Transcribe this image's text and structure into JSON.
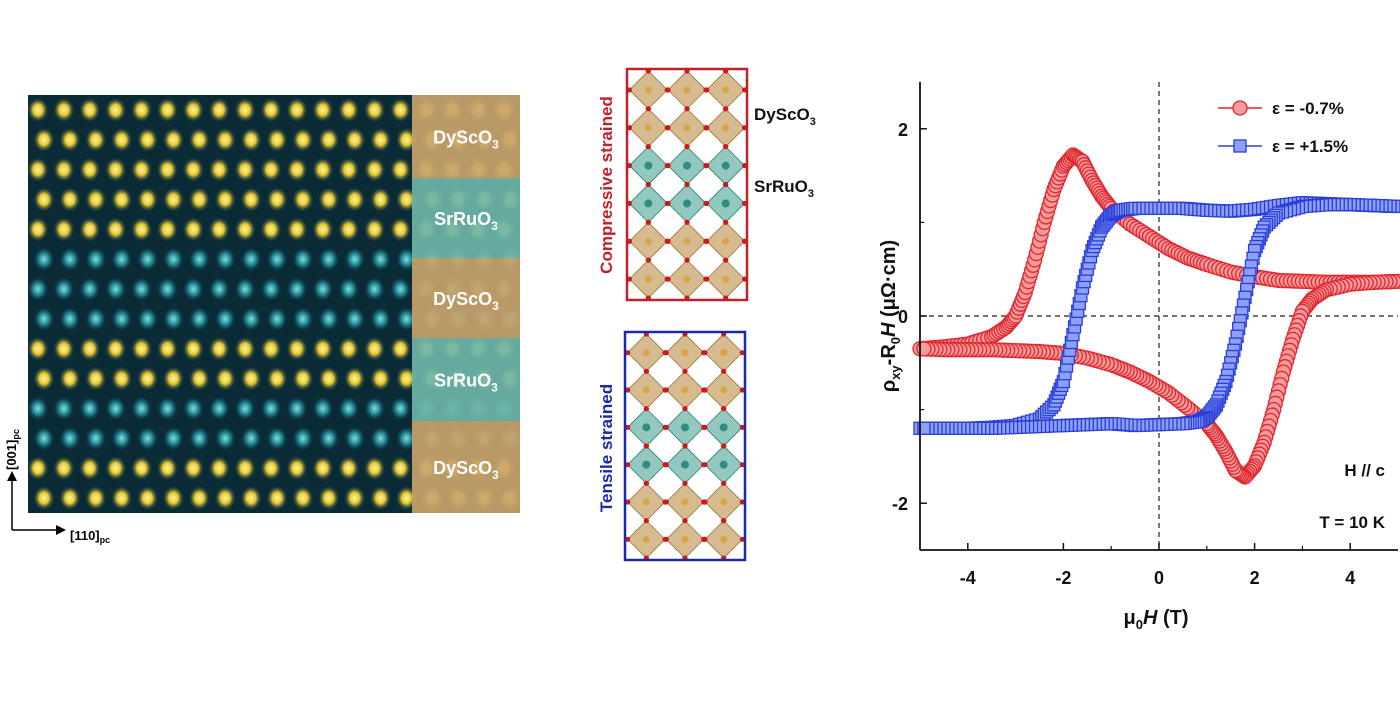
{
  "stem": {
    "layers": [
      {
        "base": "DyScO",
        "sub": "3",
        "kind": "dso"
      },
      {
        "base": "SrRuO",
        "sub": "3",
        "kind": "sro"
      },
      {
        "base": "DyScO",
        "sub": "3",
        "kind": "dso"
      },
      {
        "base": "SrRuO",
        "sub": "3",
        "kind": "sro"
      },
      {
        "base": "DyScO",
        "sub": "3",
        "kind": "dso"
      }
    ],
    "axis_vertical": {
      "base": "[001]",
      "sub": "pc"
    },
    "axis_horizontal": {
      "base": "[110]",
      "sub": "pc"
    }
  },
  "structures": {
    "compressive_label": "Compressive strained",
    "tensile_label": "Tensile strained",
    "dso_label": {
      "base": "DyScO",
      "sub": "3"
    },
    "sro_label": {
      "base": "SrRuO",
      "sub": "3"
    }
  },
  "colors": {
    "dso": "#c9a46b",
    "sro": "#6fb5a8",
    "compressive": "#c0202a",
    "tensile": "#1a2aa6",
    "series_red": "#e0262e",
    "series_blue": "#2a3ed8"
  },
  "chart_data": {
    "type": "scatter",
    "xlabel": "μ0H (T)",
    "ylabel": "ρxy-R0H (μΩ·cm)",
    "xlim": [
      -5,
      5
    ],
    "ylim": [
      -2.5,
      2.5
    ],
    "xticks": [
      -4,
      -2,
      0,
      2,
      4
    ],
    "yticks": [
      -2,
      0,
      2
    ],
    "annotations": [
      "H // c",
      "T = 10 K"
    ],
    "series": [
      {
        "name": "ε = -0.7%",
        "marker": "circle",
        "branches": [
          {
            "x": [
              -5,
              -4.5,
              -4,
              -3.5,
              -3.2,
              -3.0,
              -2.8,
              -2.6,
              -2.4,
              -2.2,
              -2.0,
              -1.8,
              -1.6,
              -1.4,
              -1.2,
              -1.0,
              -0.6,
              -0.2,
              0.2,
              0.6,
              1.0,
              1.5,
              2.0,
              2.5,
              3.0,
              3.5,
              4.0,
              4.5,
              5.0
            ],
            "y": [
              -0.35,
              -0.33,
              -0.3,
              -0.22,
              -0.12,
              0.0,
              0.25,
              0.6,
              1.0,
              1.35,
              1.6,
              1.72,
              1.65,
              1.45,
              1.28,
              1.15,
              0.98,
              0.85,
              0.72,
              0.62,
              0.55,
              0.47,
              0.42,
              0.38,
              0.37,
              0.36,
              0.36,
              0.36,
              0.37
            ]
          },
          {
            "x": [
              5.0,
              4.5,
              4.0,
              3.5,
              3.2,
              3.0,
              2.8,
              2.6,
              2.4,
              2.2,
              2.0,
              1.8,
              1.6,
              1.4,
              1.2,
              1.0,
              0.6,
              0.2,
              -0.2,
              -0.6,
              -1.0,
              -1.5,
              -2.0,
              -2.5,
              -3.0,
              -3.5,
              -4.0,
              -4.5,
              -5.0
            ],
            "y": [
              0.37,
              0.36,
              0.34,
              0.28,
              0.18,
              0.05,
              -0.25,
              -0.6,
              -1.0,
              -1.35,
              -1.6,
              -1.72,
              -1.65,
              -1.45,
              -1.28,
              -1.15,
              -0.98,
              -0.82,
              -0.7,
              -0.6,
              -0.52,
              -0.45,
              -0.4,
              -0.38,
              -0.37,
              -0.36,
              -0.36,
              -0.36,
              -0.35
            ]
          }
        ]
      },
      {
        "name": "ε = +1.5%",
        "marker": "square",
        "branches": [
          {
            "x": [
              -5,
              -4.5,
              -4,
              -3.5,
              -3.0,
              -2.5,
              -2.2,
              -2.0,
              -1.8,
              -1.6,
              -1.4,
              -1.2,
              -1.0,
              -0.8,
              -0.5,
              0,
              0.5,
              1.0,
              1.5,
              2.0,
              2.5,
              3.0,
              3.5,
              4.0,
              4.5,
              5.0
            ],
            "y": [
              -1.2,
              -1.2,
              -1.2,
              -1.19,
              -1.17,
              -1.1,
              -0.95,
              -0.7,
              -0.2,
              0.3,
              0.7,
              0.95,
              1.08,
              1.13,
              1.15,
              1.15,
              1.15,
              1.13,
              1.12,
              1.14,
              1.18,
              1.21,
              1.2,
              1.19,
              1.18,
              1.17
            ]
          },
          {
            "x": [
              5.0,
              4.5,
              4.0,
              3.5,
              3.0,
              2.5,
              2.2,
              2.0,
              1.8,
              1.6,
              1.4,
              1.2,
              1.0,
              0.8,
              0.5,
              0,
              -0.5,
              -1.0,
              -1.5,
              -2.0,
              -2.5,
              -3.0,
              -3.5,
              -4.0,
              -4.5,
              -5.0
            ],
            "y": [
              1.17,
              1.18,
              1.19,
              1.19,
              1.17,
              1.1,
              0.95,
              0.7,
              0.2,
              -0.3,
              -0.7,
              -0.95,
              -1.08,
              -1.13,
              -1.15,
              -1.16,
              -1.17,
              -1.15,
              -1.16,
              -1.17,
              -1.18,
              -1.19,
              -1.2,
              -1.2,
              -1.2,
              -1.2
            ]
          }
        ]
      }
    ]
  }
}
